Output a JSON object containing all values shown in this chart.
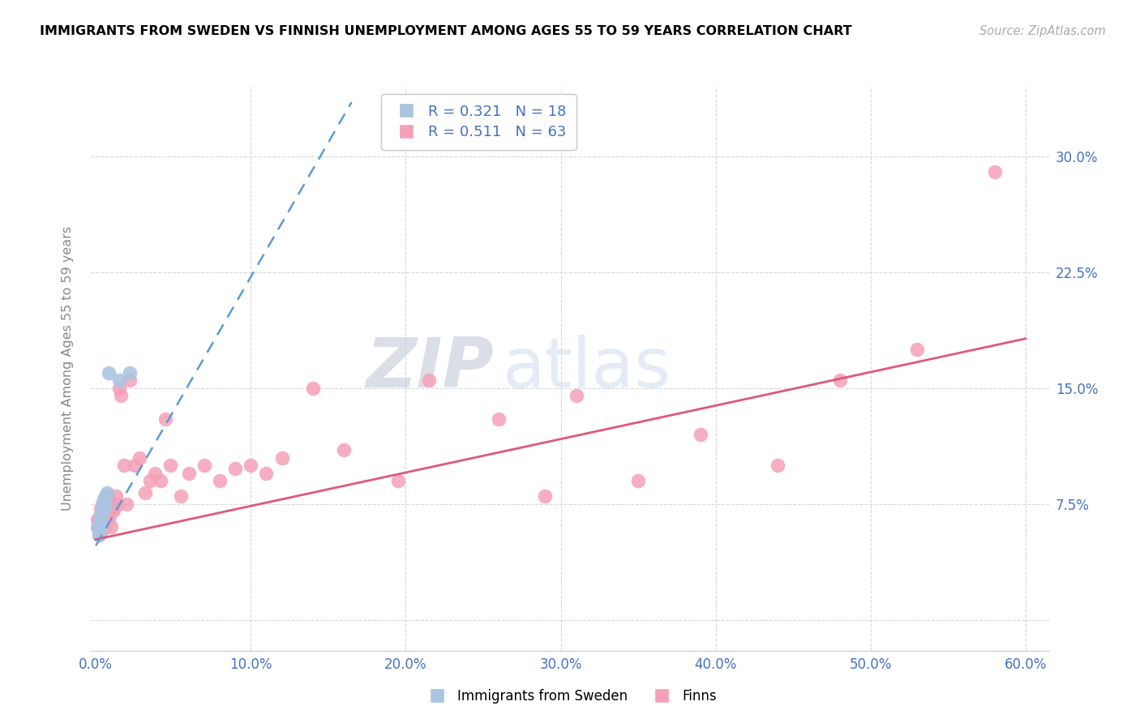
{
  "title": "IMMIGRANTS FROM SWEDEN VS FINNISH UNEMPLOYMENT AMONG AGES 55 TO 59 YEARS CORRELATION CHART",
  "source": "Source: ZipAtlas.com",
  "ylabel": "Unemployment Among Ages 55 to 59 years",
  "xlim": [
    -0.003,
    0.615
  ],
  "ylim": [
    -0.02,
    0.345
  ],
  "yticks": [
    0.0,
    0.075,
    0.15,
    0.225,
    0.3
  ],
  "ytick_labels": [
    "",
    "7.5%",
    "15.0%",
    "22.5%",
    "30.0%"
  ],
  "xticks": [
    0.0,
    0.1,
    0.2,
    0.3,
    0.4,
    0.5,
    0.6
  ],
  "xtick_labels": [
    "0.0%",
    "10.0%",
    "20.0%",
    "30.0%",
    "40.0%",
    "50.0%",
    "60.0%"
  ],
  "legend_sweden_r": "R = 0.321   N = 18",
  "legend_finns_r": "R = 0.511   N = 63",
  "legend_label_sweden": "Immigrants from Sweden",
  "legend_label_finns": "Finns",
  "color_sweden": "#aac4e2",
  "color_finns": "#f5a0b8",
  "color_trendline_sweden": "#5b9bd5",
  "color_trendline_finns": "#e05878",
  "sweden_x": [
    0.001,
    0.002,
    0.002,
    0.003,
    0.003,
    0.003,
    0.004,
    0.004,
    0.004,
    0.005,
    0.005,
    0.005,
    0.006,
    0.006,
    0.007,
    0.008,
    0.015,
    0.022
  ],
  "sweden_y": [
    0.06,
    0.055,
    0.06,
    0.06,
    0.065,
    0.068,
    0.07,
    0.072,
    0.075,
    0.072,
    0.075,
    0.078,
    0.075,
    0.08,
    0.082,
    0.16,
    0.155,
    0.16
  ],
  "finns_x": [
    0.001,
    0.001,
    0.002,
    0.002,
    0.002,
    0.003,
    0.003,
    0.003,
    0.003,
    0.004,
    0.004,
    0.004,
    0.005,
    0.005,
    0.005,
    0.006,
    0.006,
    0.007,
    0.007,
    0.008,
    0.008,
    0.009,
    0.009,
    0.01,
    0.01,
    0.011,
    0.012,
    0.013,
    0.014,
    0.015,
    0.016,
    0.018,
    0.02,
    0.022,
    0.025,
    0.028,
    0.032,
    0.035,
    0.038,
    0.042,
    0.045,
    0.048,
    0.055,
    0.06,
    0.07,
    0.08,
    0.09,
    0.1,
    0.11,
    0.12,
    0.14,
    0.16,
    0.195,
    0.215,
    0.26,
    0.29,
    0.31,
    0.35,
    0.39,
    0.44,
    0.48,
    0.53,
    0.58
  ],
  "finns_y": [
    0.06,
    0.065,
    0.055,
    0.06,
    0.065,
    0.058,
    0.062,
    0.068,
    0.072,
    0.058,
    0.065,
    0.07,
    0.06,
    0.065,
    0.075,
    0.06,
    0.07,
    0.068,
    0.08,
    0.065,
    0.075,
    0.07,
    0.078,
    0.06,
    0.075,
    0.07,
    0.072,
    0.08,
    0.075,
    0.15,
    0.145,
    0.1,
    0.075,
    0.155,
    0.1,
    0.105,
    0.082,
    0.09,
    0.095,
    0.09,
    0.13,
    0.1,
    0.08,
    0.095,
    0.1,
    0.09,
    0.098,
    0.1,
    0.095,
    0.105,
    0.15,
    0.11,
    0.09,
    0.155,
    0.13,
    0.08,
    0.145,
    0.09,
    0.12,
    0.1,
    0.155,
    0.175,
    0.29
  ],
  "finns_trendline_x0": 0.0,
  "finns_trendline_x1": 0.6,
  "finns_trendline_y0": 0.052,
  "finns_trendline_y1": 0.182,
  "sweden_trendline_x0": 0.0,
  "sweden_trendline_x1": 0.165,
  "sweden_trendline_y0": 0.048,
  "sweden_trendline_y1": 0.335
}
